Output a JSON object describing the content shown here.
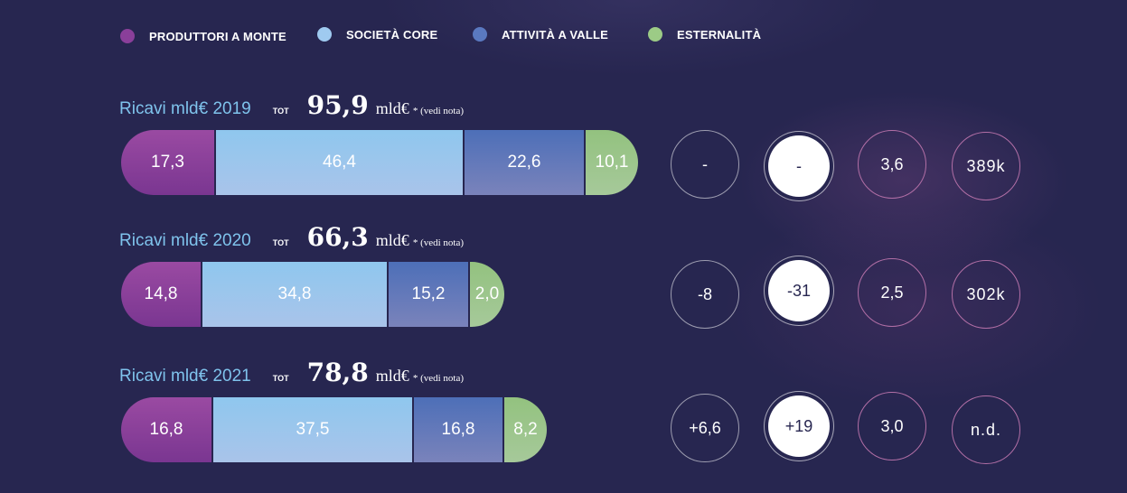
{
  "legend": [
    {
      "label": "PRODUTTORI A MONTE",
      "color": "#8a3f9a"
    },
    {
      "label": "SOCIETÀ CORE",
      "color": "#9fcaf0"
    },
    {
      "label": "ATTIVITÀ A VALLE",
      "color": "#5a79c0"
    },
    {
      "label": "ESTERNALITÀ",
      "color": "#9ccb86"
    }
  ],
  "rows": [
    {
      "ricavi": "Ricavi mld€ 2019",
      "tot_label": "TOT",
      "tot_value": "95,9",
      "tot_unit": "mld€",
      "tot_note": "* (vedi nota)",
      "bar_labels": [
        "17,3",
        "46,4",
        "22,6",
        "10,1"
      ],
      "circles": [
        "-",
        "-",
        "3,6",
        "389k"
      ]
    },
    {
      "ricavi": "Ricavi mld€ 2020",
      "tot_label": "TOT",
      "tot_value": "66,3",
      "tot_unit": "mld€",
      "tot_note": "* (vedi nota)",
      "bar_labels": [
        "14,8",
        "34,8",
        "15,2",
        "2,0"
      ],
      "circles": [
        "-8",
        "-31",
        "2,5",
        "302k"
      ]
    },
    {
      "ricavi": "Ricavi mld€ 2021",
      "tot_label": "TOT",
      "tot_value": "78,8",
      "tot_unit": "mld€",
      "tot_note": "* (vedi nota)",
      "bar_labels": [
        "16,8",
        "37,5",
        "16,8",
        "8,2"
      ],
      "circles": [
        "+6,6",
        "+19",
        "3,0",
        "n.d."
      ]
    }
  ],
  "chart_data": {
    "type": "bar",
    "stacked": true,
    "orientation": "horizontal",
    "categories": [
      "2019",
      "2020",
      "2021"
    ],
    "series": [
      {
        "name": "PRODUTTORI A MONTE",
        "values": [
          17.3,
          14.8,
          16.8
        ]
      },
      {
        "name": "SOCIETÀ CORE",
        "values": [
          46.4,
          34.8,
          37.5
        ]
      },
      {
        "name": "ATTIVITÀ A VALLE",
        "values": [
          22.6,
          15.2,
          16.8
        ]
      },
      {
        "name": "ESTERNALITÀ",
        "values": [
          10.1,
          2.0,
          8.2
        ]
      }
    ],
    "totals": [
      95.9,
      66.3,
      78.8
    ],
    "legend_position": "top",
    "grid": false
  }
}
